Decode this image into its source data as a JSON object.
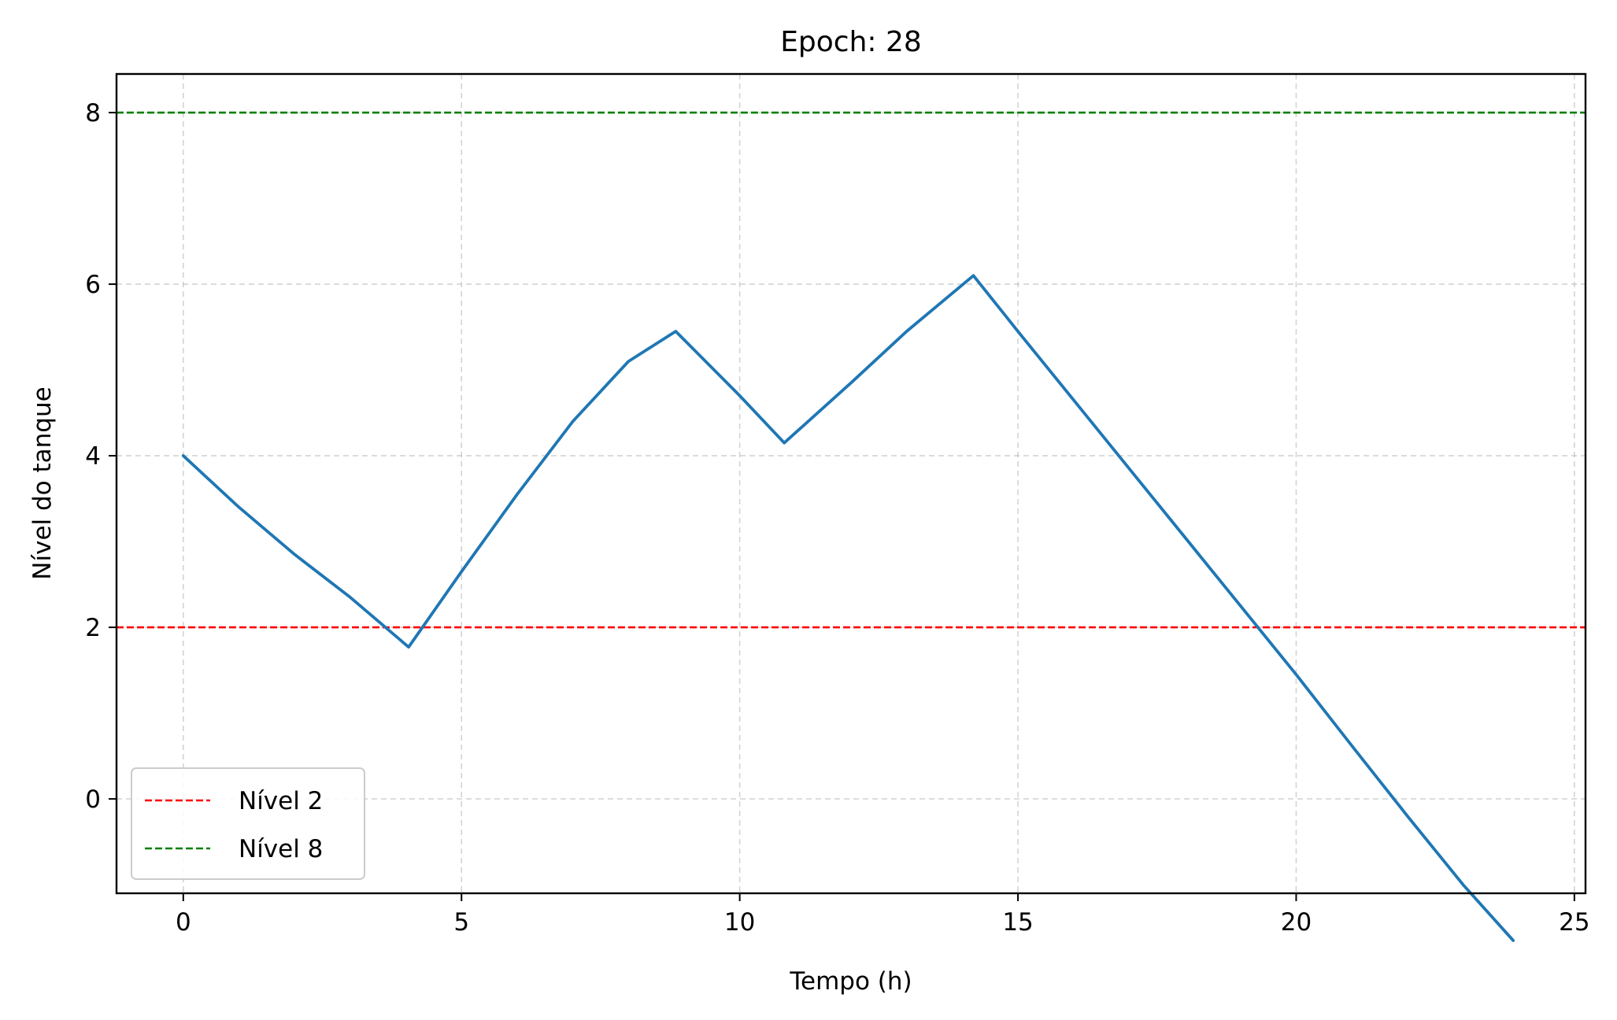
{
  "chart_data": {
    "type": "line",
    "title": "Epoch: 28",
    "xlabel": "Tempo (h)",
    "ylabel": "Nível do tanque",
    "xlim": [
      -1.2,
      25.2
    ],
    "ylim": [
      -1.1,
      8.45
    ],
    "x_ticks": [
      0,
      5,
      10,
      15,
      20,
      25
    ],
    "y_ticks": [
      0,
      2,
      4,
      6,
      8
    ],
    "grid": true,
    "legend_position": "lower-left",
    "series": [
      {
        "color": "#1f77b4",
        "style": "solid",
        "x": [
          0,
          1,
          2,
          3,
          4.05,
          5,
          6,
          7,
          8,
          8.85,
          10,
          10.8,
          12,
          13,
          14.2,
          15,
          16,
          17,
          18,
          19,
          20,
          21,
          22,
          23,
          23.9
        ],
        "y": [
          4.0,
          3.4,
          2.85,
          2.35,
          1.77,
          2.65,
          3.55,
          4.4,
          5.1,
          5.45,
          4.7,
          4.15,
          4.85,
          5.45,
          6.1,
          5.45,
          4.65,
          3.85,
          3.05,
          2.25,
          1.45,
          0.62,
          -0.2,
          -1.0,
          -1.65
        ]
      }
    ],
    "reference_lines": [
      {
        "name": "Nível 2",
        "y": 2,
        "color": "#ff0000",
        "style": "dashed"
      },
      {
        "name": "Nível 8",
        "y": 8,
        "color": "#008000",
        "style": "dashed"
      }
    ]
  }
}
